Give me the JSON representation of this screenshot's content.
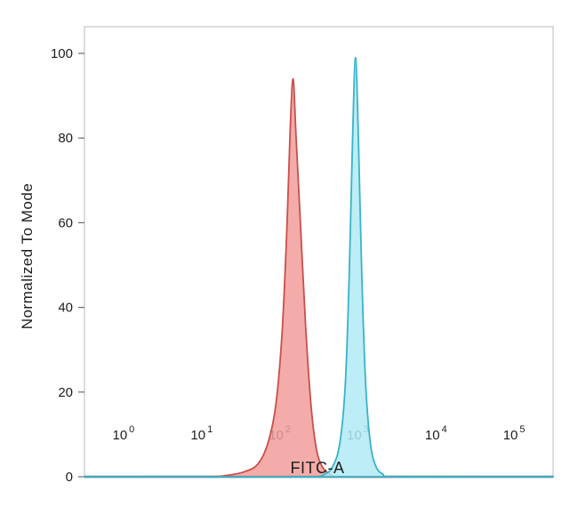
{
  "chart_data": {
    "type": "area",
    "chart_kind": "flow-cytometry-histogram",
    "title": "",
    "xlabel": "FITC-A",
    "ylabel": "Normalized To Mode",
    "x_scale": "log10",
    "xlim_log10": [
      -0.5,
      5.5
    ],
    "x_tick_base": "10",
    "x_tick_exponents": [
      "0",
      "1",
      "2",
      "3",
      "4",
      "5"
    ],
    "ylim": [
      0,
      100
    ],
    "y_ticks": [
      0,
      20,
      40,
      60,
      80,
      100
    ],
    "grid": false,
    "legend": "none",
    "plot_bg": "#ffffff",
    "axis_color": "#c6c6c6",
    "baseline_color": "#2e6f80",
    "text_color": "#1d1d1d",
    "series": [
      {
        "name": "red-population",
        "fill": "#f19d9a",
        "stroke": "#c94f4b",
        "fill_opacity": 0.85,
        "peak": {
          "log10_x": 2.17,
          "height": 94
        },
        "points_log10x_y": [
          [
            -0.5,
            0
          ],
          [
            0.3,
            0
          ],
          [
            1.1,
            0
          ],
          [
            1.35,
            0.4
          ],
          [
            1.55,
            1.2
          ],
          [
            1.72,
            3
          ],
          [
            1.85,
            8
          ],
          [
            1.95,
            17
          ],
          [
            2.03,
            34
          ],
          [
            2.09,
            58
          ],
          [
            2.13,
            80
          ],
          [
            2.17,
            94
          ],
          [
            2.21,
            80
          ],
          [
            2.27,
            58
          ],
          [
            2.33,
            36
          ],
          [
            2.4,
            17
          ],
          [
            2.47,
            6.5
          ],
          [
            2.55,
            2.2
          ],
          [
            2.65,
            0.6
          ],
          [
            2.78,
            0
          ],
          [
            4.1,
            0
          ],
          [
            5.5,
            0
          ]
        ]
      },
      {
        "name": "cyan-population",
        "fill": "#b2eaf4",
        "stroke": "#38b3c9",
        "fill_opacity": 0.85,
        "peak": {
          "log10_x": 2.97,
          "height": 99
        },
        "points_log10x_y": [
          [
            -0.5,
            0
          ],
          [
            0.6,
            0
          ],
          [
            1.6,
            0
          ],
          [
            2.1,
            0
          ],
          [
            2.45,
            0
          ],
          [
            2.58,
            0.6
          ],
          [
            2.68,
            2.5
          ],
          [
            2.77,
            8
          ],
          [
            2.84,
            22
          ],
          [
            2.89,
            48
          ],
          [
            2.93,
            78
          ],
          [
            2.97,
            99
          ],
          [
            3.01,
            78
          ],
          [
            3.05,
            48
          ],
          [
            3.1,
            22
          ],
          [
            3.16,
            8
          ],
          [
            3.23,
            2.5
          ],
          [
            3.32,
            0.6
          ],
          [
            3.45,
            0
          ],
          [
            4.5,
            0
          ],
          [
            5.5,
            0
          ]
        ]
      }
    ]
  }
}
